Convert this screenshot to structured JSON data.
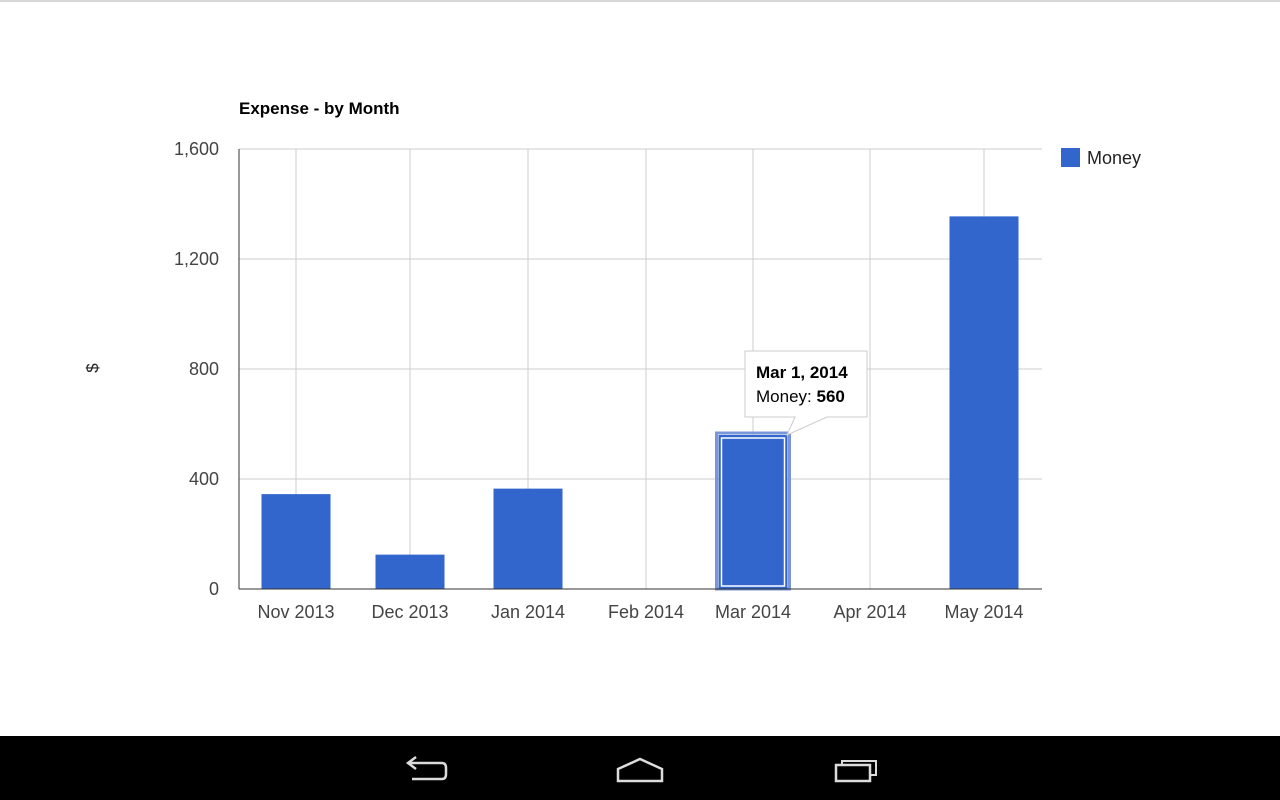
{
  "chart_data": {
    "type": "bar",
    "title": "Expense - by Month",
    "ylabel": "$",
    "xlabel": "",
    "ylim": [
      0,
      1600
    ],
    "yticks": [
      0,
      400,
      800,
      1200,
      1600
    ],
    "ytick_labels": [
      "0",
      "400",
      "800",
      "1,200",
      "1,600"
    ],
    "categories": [
      "Nov 2013",
      "Dec 2013",
      "Jan 2014",
      "Feb 2014",
      "Mar 2014",
      "Apr 2014",
      "May 2014"
    ],
    "series": [
      {
        "name": "Money",
        "color": "#3366cc",
        "values": [
          345,
          125,
          365,
          0,
          560,
          0,
          1355
        ]
      }
    ],
    "legend": {
      "position": "right"
    },
    "grid": true,
    "tooltip": {
      "category_index": 4,
      "title": "Mar 1, 2014",
      "series_label": "Money: ",
      "value_label": "560"
    }
  },
  "navbar": {
    "back": "back-icon",
    "home": "home-icon",
    "recents": "recent-apps-icon"
  }
}
